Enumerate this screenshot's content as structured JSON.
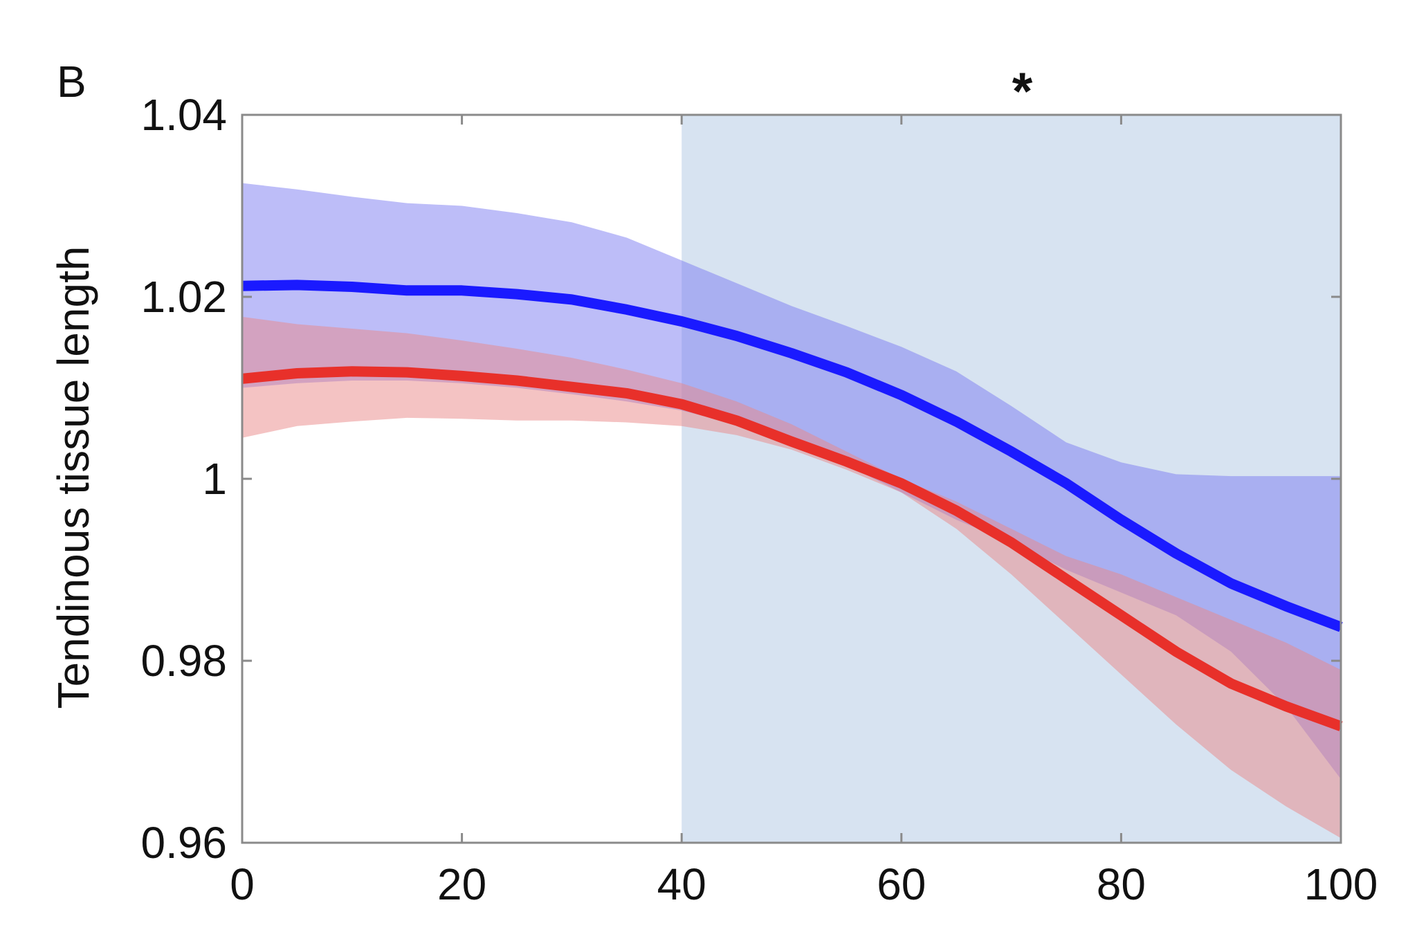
{
  "chart_data": {
    "type": "line",
    "panel_label": "B",
    "title": "",
    "xlabel": "",
    "ylabel": "Tendinous tissue length",
    "xlim": [
      0,
      100
    ],
    "ylim": [
      0.96,
      1.04
    ],
    "x_ticks": [
      0,
      20,
      40,
      60,
      80,
      100
    ],
    "x_tick_labels": [
      "0",
      "20",
      "40",
      "60",
      "80",
      "100"
    ],
    "y_ticks": [
      0.96,
      0.98,
      1.0,
      1.02,
      1.04
    ],
    "y_tick_labels": [
      "0.96",
      "0.98",
      "1",
      "1.02",
      "1.04"
    ],
    "grid": false,
    "highlight_region": {
      "x_start": 40,
      "x_end": 100,
      "color": "#d7e3f1"
    },
    "annotation": {
      "text": "*",
      "x": 71
    },
    "x": [
      0,
      5,
      10,
      15,
      20,
      25,
      30,
      35,
      40,
      45,
      50,
      55,
      60,
      65,
      70,
      75,
      80,
      85,
      90,
      95,
      100
    ],
    "series": [
      {
        "color": "#1a1aff",
        "band_color": "#7b7bf2",
        "values": [
          1.0212,
          1.0213,
          1.0211,
          1.0207,
          1.0207,
          1.0203,
          1.0197,
          1.0186,
          1.0173,
          1.0157,
          1.0138,
          1.0117,
          1.0092,
          1.0063,
          1.003,
          0.9995,
          0.9955,
          0.9918,
          0.9885,
          0.986,
          0.9837
        ],
        "upper": [
          1.0325,
          1.0318,
          1.031,
          1.0303,
          1.03,
          1.0292,
          1.0282,
          1.0265,
          1.024,
          1.0215,
          1.019,
          1.0168,
          1.0145,
          1.0118,
          1.008,
          1.004,
          1.0018,
          1.0005,
          1.0003,
          1.0003,
          1.0003
        ],
        "lower": [
          1.01,
          1.0105,
          1.0108,
          1.0108,
          1.0105,
          1.01,
          1.0093,
          1.0085,
          1.0075,
          1.006,
          1.004,
          1.0015,
          0.9985,
          0.9955,
          0.993,
          0.99,
          0.9875,
          0.985,
          0.981,
          0.975,
          0.967
        ]
      },
      {
        "color": "#e8302a",
        "band_color": "#e98888",
        "values": [
          1.011,
          1.0116,
          1.0118,
          1.0117,
          1.0113,
          1.0108,
          1.0101,
          1.0094,
          1.0082,
          1.0064,
          1.0041,
          1.0019,
          0.9995,
          0.9965,
          0.993,
          0.989,
          0.985,
          0.981,
          0.9775,
          0.975,
          0.9728
        ],
        "upper": [
          1.0178,
          1.017,
          1.0165,
          1.016,
          1.0152,
          1.0143,
          1.0133,
          1.012,
          1.0105,
          1.0085,
          1.006,
          1.003,
          1.0,
          0.9975,
          0.9945,
          0.9915,
          0.9895,
          0.987,
          0.9845,
          0.982,
          0.979
        ],
        "lower": [
          1.0045,
          1.0058,
          1.0063,
          1.0067,
          1.0066,
          1.0064,
          1.0064,
          1.0062,
          1.0058,
          1.0048,
          1.0032,
          1.001,
          0.9985,
          0.9945,
          0.9895,
          0.984,
          0.9785,
          0.973,
          0.968,
          0.964,
          0.9605
        ]
      }
    ]
  }
}
